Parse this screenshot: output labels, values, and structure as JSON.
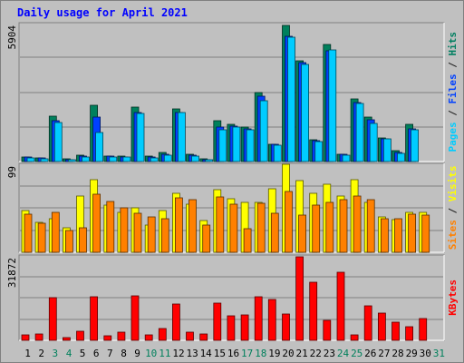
{
  "title": "Daily usage for April 2021",
  "chart_data": [
    {
      "type": "bar",
      "name": "pages-files-hits",
      "categories": [
        "1",
        "2",
        "3",
        "4",
        "5",
        "6",
        "7",
        "8",
        "9",
        "10",
        "11",
        "12",
        "13",
        "14",
        "15",
        "16",
        "17",
        "18",
        "19",
        "20",
        "21",
        "22",
        "23",
        "24",
        "25",
        "26",
        "27",
        "28",
        "29",
        "30",
        "31"
      ],
      "max_label": "5904",
      "ylim": [
        0,
        5904
      ],
      "axis_label_parts": [
        {
          "text": "Pages",
          "color": "#00ccff"
        },
        {
          "text": " / ",
          "color": "#1a1a1a"
        },
        {
          "text": "Files",
          "color": "#0040ff"
        },
        {
          "text": " / ",
          "color": "#1a1a1a"
        },
        {
          "text": "Hits",
          "color": "#007f60"
        }
      ],
      "series": [
        {
          "name": "Hits",
          "color": "#00805c",
          "values": [
            200,
            160,
            1950,
            110,
            280,
            2430,
            230,
            230,
            2350,
            230,
            380,
            2270,
            310,
            100,
            1740,
            1590,
            1470,
            2960,
            760,
            5870,
            4340,
            920,
            5050,
            330,
            2700,
            1920,
            1020,
            470,
            1600,
            0,
            0
          ]
        },
        {
          "name": "Files",
          "color": "#0040ff",
          "values": [
            180,
            140,
            1740,
            90,
            240,
            1930,
            220,
            210,
            2120,
            200,
            320,
            2130,
            270,
            90,
            1470,
            1540,
            1400,
            2810,
            740,
            5400,
            4250,
            880,
            4780,
            300,
            2530,
            1780,
            990,
            400,
            1400,
            0,
            0
          ]
        },
        {
          "name": "Pages",
          "color": "#00ccff",
          "values": [
            150,
            120,
            1680,
            80,
            200,
            1240,
            190,
            180,
            2060,
            170,
            260,
            2100,
            240,
            70,
            1370,
            1470,
            1370,
            2620,
            720,
            5350,
            4200,
            850,
            4800,
            280,
            2500,
            1650,
            960,
            360,
            1370,
            0,
            0
          ]
        }
      ]
    },
    {
      "type": "bar",
      "name": "sites-visits",
      "categories": [
        "1",
        "2",
        "3",
        "4",
        "5",
        "6",
        "7",
        "8",
        "9",
        "10",
        "11",
        "12",
        "13",
        "14",
        "15",
        "16",
        "17",
        "18",
        "19",
        "20",
        "21",
        "22",
        "23",
        "24",
        "25",
        "26",
        "27",
        "28",
        "29",
        "30",
        "31"
      ],
      "max_label": "99",
      "ylim": [
        0,
        99
      ],
      "axis_label_parts": [
        {
          "text": "Sites",
          "color": "#ff8000"
        },
        {
          "text": " / ",
          "color": "#1a1a1a"
        },
        {
          "text": "Visits",
          "color": "#ffff00"
        }
      ],
      "series": [
        {
          "name": "Visits",
          "color": "#ffff00",
          "values": [
            47,
            34,
            38,
            28,
            64,
            83,
            54,
            45,
            51,
            31,
            47,
            67,
            55,
            36,
            71,
            61,
            57,
            57,
            72,
            100,
            81,
            67,
            77,
            64,
            82,
            57,
            40,
            37,
            45,
            45,
            0
          ]
        },
        {
          "name": "Sites",
          "color": "#ff8000",
          "values": [
            43,
            33,
            45,
            25,
            28,
            66,
            58,
            51,
            44,
            40,
            38,
            62,
            60,
            31,
            63,
            55,
            27,
            56,
            44,
            69,
            42,
            54,
            57,
            60,
            64,
            60,
            38,
            38,
            43,
            42,
            0
          ]
        }
      ]
    },
    {
      "type": "bar",
      "name": "kbytes",
      "categories": [
        "1",
        "2",
        "3",
        "4",
        "5",
        "6",
        "7",
        "8",
        "9",
        "10",
        "11",
        "12",
        "13",
        "14",
        "15",
        "16",
        "17",
        "18",
        "19",
        "20",
        "21",
        "22",
        "23",
        "24",
        "25",
        "26",
        "27",
        "28",
        "29",
        "30",
        "31"
      ],
      "max_label": "31872",
      "ylim": [
        0,
        31872
      ],
      "axis_label_parts": [
        {
          "text": "KBytes",
          "color": "#ff0000"
        }
      ],
      "series": [
        {
          "name": "KBytes",
          "color": "#ff0000",
          "values": [
            2200,
            2500,
            16200,
            1200,
            3400,
            16800,
            1900,
            3200,
            17100,
            2200,
            4600,
            13800,
            3000,
            2500,
            14200,
            9300,
            9600,
            16700,
            15600,
            10000,
            31700,
            22100,
            7500,
            26100,
            2200,
            13200,
            10300,
            7000,
            5300,
            8400,
            0
          ]
        }
      ]
    }
  ],
  "weekend_color": "#00805c",
  "weekday_color": "#000000",
  "weekend_days": [
    "3",
    "4",
    "10",
    "11",
    "17",
    "18",
    "24",
    "25",
    "31"
  ]
}
